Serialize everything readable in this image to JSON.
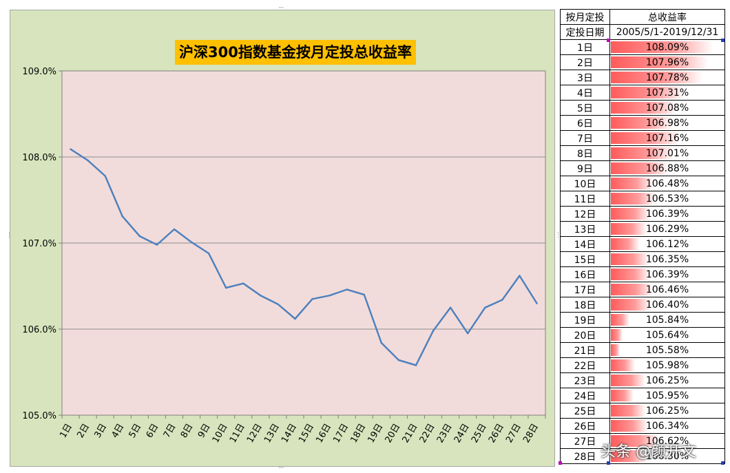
{
  "chart_data": {
    "type": "line",
    "title": "沪深300指数基金按月定投总收益率",
    "categories": [
      "1日",
      "2日",
      "3日",
      "4日",
      "5日",
      "6日",
      "7日",
      "8日",
      "9日",
      "10日",
      "11日",
      "12日",
      "13日",
      "14日",
      "15日",
      "16日",
      "17日",
      "18日",
      "19日",
      "20日",
      "21日",
      "22日",
      "23日",
      "24日",
      "25日",
      "26日",
      "27日",
      "28日"
    ],
    "series": [
      {
        "values": [
          108.09,
          107.96,
          107.78,
          107.31,
          107.08,
          106.98,
          107.16,
          107.01,
          106.88,
          106.48,
          106.53,
          106.39,
          106.29,
          106.12,
          106.35,
          106.39,
          106.46,
          106.4,
          105.84,
          105.64,
          105.58,
          105.98,
          106.25,
          105.95,
          106.25,
          106.34,
          106.62,
          106.3
        ]
      }
    ],
    "y_ticks": [
      "105.0%",
      "106.0%",
      "107.0%",
      "108.0%",
      "109.0%"
    ],
    "ylim": [
      105,
      109
    ],
    "xlabel": "",
    "ylabel": "",
    "grid": true,
    "line_color": "#4f81bd",
    "plot_bg": "#f2dcdb",
    "chart_bg": "#d7e4bd"
  },
  "table": {
    "header": {
      "row1_col1": "按月定投",
      "row1_col2": "总收益率",
      "row2_col1": "定投日期",
      "row2_col2": "2005/5/1-2019/12/31"
    },
    "rows": [
      {
        "day": "1日",
        "rate": "108.09%"
      },
      {
        "day": "2日",
        "rate": "107.96%"
      },
      {
        "day": "3日",
        "rate": "107.78%"
      },
      {
        "day": "4日",
        "rate": "107.31%"
      },
      {
        "day": "5日",
        "rate": "107.08%"
      },
      {
        "day": "6日",
        "rate": "106.98%"
      },
      {
        "day": "7日",
        "rate": "107.16%"
      },
      {
        "day": "8日",
        "rate": "107.01%"
      },
      {
        "day": "9日",
        "rate": "106.88%"
      },
      {
        "day": "10日",
        "rate": "106.48%"
      },
      {
        "day": "11日",
        "rate": "106.53%"
      },
      {
        "day": "12日",
        "rate": "106.39%"
      },
      {
        "day": "13日",
        "rate": "106.29%"
      },
      {
        "day": "14日",
        "rate": "106.12%"
      },
      {
        "day": "15日",
        "rate": "106.35%"
      },
      {
        "day": "16日",
        "rate": "106.39%"
      },
      {
        "day": "17日",
        "rate": "106.46%"
      },
      {
        "day": "18日",
        "rate": "106.40%"
      },
      {
        "day": "19日",
        "rate": "105.84%"
      },
      {
        "day": "20日",
        "rate": "105.64%"
      },
      {
        "day": "21日",
        "rate": "105.58%"
      },
      {
        "day": "22日",
        "rate": "105.98%"
      },
      {
        "day": "23日",
        "rate": "106.25%"
      },
      {
        "day": "24日",
        "rate": "105.95%"
      },
      {
        "day": "25日",
        "rate": "106.25%"
      },
      {
        "day": "26日",
        "rate": "106.34%"
      },
      {
        "day": "27日",
        "rate": "106.62%"
      },
      {
        "day": "28日",
        "rate": "106.30%"
      }
    ],
    "bar_color": "#ff5a5a"
  },
  "watermark": "头条 @颜开文"
}
